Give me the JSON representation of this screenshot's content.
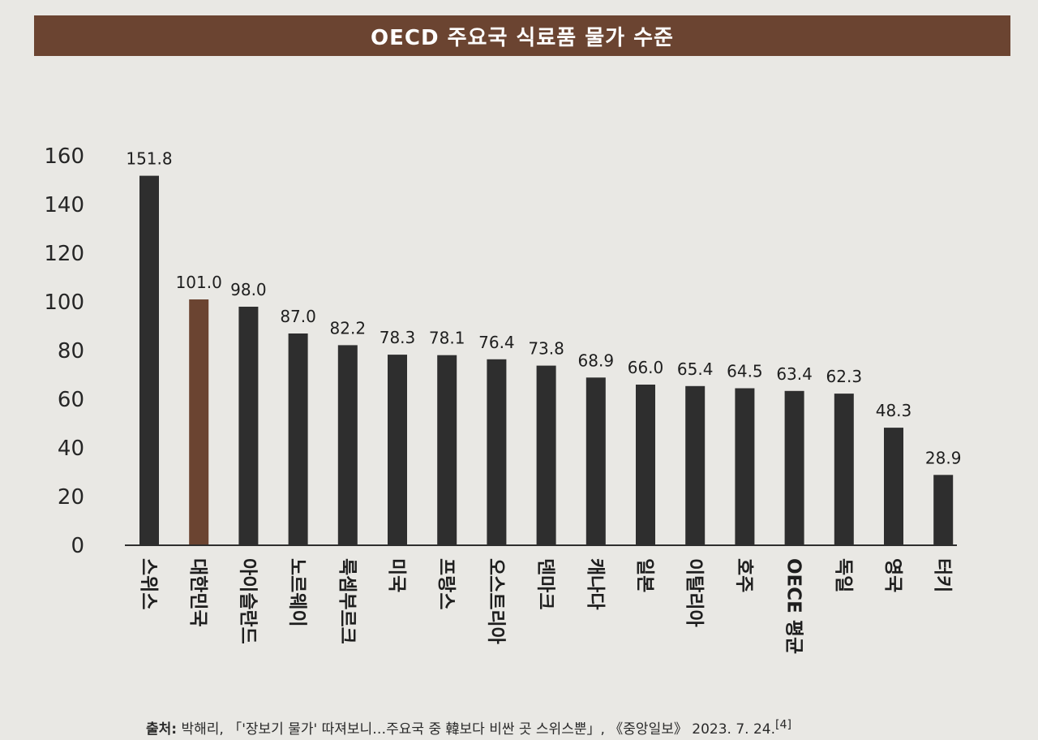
{
  "title": "OECD 주요국 식료품 물가 수준",
  "source": {
    "label": "출처:",
    "text": " 박해리, 「'장보기 물가' 따져보니…주요국 중 韓보다 비싼 곳 스위스뿐」, 《중앙일보》 2023. 7. 24.",
    "ref": "[4]"
  },
  "colors": {
    "bar": "#2e2e2e",
    "highlight": "#6b4431",
    "title_bg": "#6b4431"
  },
  "chart_data": {
    "type": "bar",
    "title": "OECD 주요국 식료품 물가 수준",
    "xlabel": "",
    "ylabel": "",
    "ylim": [
      0,
      160
    ],
    "yticks": [
      0,
      20,
      40,
      60,
      80,
      100,
      120,
      140,
      160
    ],
    "grid": false,
    "categories": [
      "스위스",
      "대한민국",
      "아이슬란드",
      "노르웨이",
      "룩셈부르크",
      "미국",
      "프랑스",
      "오스트리아",
      "덴마크",
      "캐나다",
      "일본",
      "이탈리아",
      "호주",
      "OECE 평균",
      "독일",
      "영국",
      "터키"
    ],
    "values": [
      151.8,
      101.0,
      98.0,
      87.0,
      82.2,
      78.3,
      78.1,
      76.4,
      73.8,
      68.9,
      66.0,
      65.4,
      64.5,
      63.4,
      62.3,
      48.3,
      28.9
    ],
    "value_labels": [
      "151.8",
      "101.0",
      "98.0",
      "87.0",
      "82.2",
      "78.3",
      "78.1",
      "76.4",
      "73.8",
      "68.9",
      "66.0",
      "65.4",
      "64.5",
      "63.4",
      "62.3",
      "48.3",
      "28.9"
    ],
    "highlight_category": "대한민국"
  }
}
